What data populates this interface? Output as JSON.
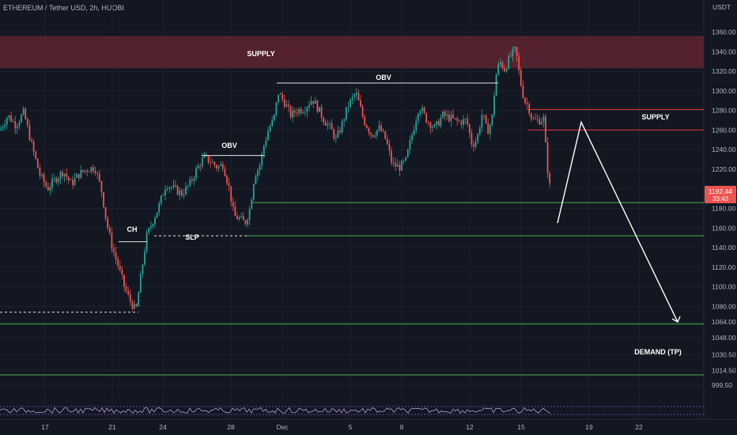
{
  "header": {
    "symbol_title": "ETHEREUM / Tether USD, 2h, HUOBI"
  },
  "colors": {
    "background": "#131722",
    "up": "#26a69a",
    "down": "#ef5350",
    "supply_zone": "#5b2330",
    "level_green": "#4caf50",
    "level_red": "#e53935",
    "projection": "#ffffff",
    "price_tag": "#ef5350"
  },
  "chart_data": {
    "type": "candlestick",
    "title": "ETHEREUM / Tether USD, 2h, HUOBI",
    "y_unit": "USDT",
    "ylim": [
      985,
      1375
    ],
    "y_ticks": [
      "1360.00",
      "1340.00",
      "1320.00",
      "1300.00",
      "1280.00",
      "1260.00",
      "1240.00",
      "1220.00",
      "1200.00",
      "1180.00",
      "1160.00",
      "1140.00",
      "1120.00",
      "1100.00",
      "1080.00",
      "1064.00",
      "1048.00",
      "1030.50",
      "1014.50",
      "999.50"
    ],
    "x_labels": [
      "17",
      "21",
      "24",
      "28",
      "Dec",
      "5",
      "8",
      "12",
      "15",
      "19",
      "22"
    ],
    "grid": true,
    "last_price": {
      "value": "1192.44",
      "countdown": "33:43"
    },
    "zones": [
      {
        "name": "SUPPLY",
        "from": 1323,
        "to": 1356
      },
      {
        "name": "SUPPLY",
        "from": 1260,
        "to": 1281
      }
    ],
    "levels": [
      {
        "label": "DEMAND (TP)",
        "value": 1062
      },
      {
        "label": "",
        "value": 1186
      },
      {
        "label": "",
        "value": 1152
      },
      {
        "label": "",
        "value": 1010
      }
    ],
    "annotations": [
      "SUPPLY",
      "OBV",
      "OBV",
      "CH",
      "SLP",
      "SUPPLY",
      "DEMAND (TP)"
    ],
    "path_points": [
      [
        0,
        1260
      ],
      [
        10,
        1275
      ],
      [
        20,
        1265
      ],
      [
        30,
        1278
      ],
      [
        40,
        1245
      ],
      [
        50,
        1215
      ],
      [
        60,
        1200
      ],
      [
        70,
        1210
      ],
      [
        80,
        1218
      ],
      [
        90,
        1205
      ],
      [
        100,
        1215
      ],
      [
        110,
        1220
      ],
      [
        120,
        1222
      ],
      [
        128,
        1200
      ],
      [
        135,
        1165
      ],
      [
        142,
        1140
      ],
      [
        150,
        1120
      ],
      [
        158,
        1098
      ],
      [
        165,
        1085
      ],
      [
        172,
        1075
      ],
      [
        178,
        1110
      ],
      [
        185,
        1150
      ],
      [
        192,
        1165
      ],
      [
        200,
        1180
      ],
      [
        210,
        1205
      ],
      [
        220,
        1200
      ],
      [
        230,
        1195
      ],
      [
        240,
        1205
      ],
      [
        250,
        1222
      ],
      [
        258,
        1232
      ],
      [
        266,
        1228
      ],
      [
        275,
        1222
      ],
      [
        282,
        1225
      ],
      [
        290,
        1200
      ],
      [
        296,
        1172
      ],
      [
        302,
        1170
      ],
      [
        310,
        1165
      ],
      [
        316,
        1180
      ],
      [
        322,
        1215
      ],
      [
        328,
        1222
      ],
      [
        334,
        1245
      ],
      [
        340,
        1262
      ],
      [
        346,
        1270
      ],
      [
        352,
        1298
      ],
      [
        360,
        1288
      ],
      [
        368,
        1275
      ],
      [
        375,
        1280
      ],
      [
        385,
        1282
      ],
      [
        395,
        1292
      ],
      [
        402,
        1282
      ],
      [
        410,
        1270
      ],
      [
        418,
        1262
      ],
      [
        425,
        1250
      ],
      [
        432,
        1265
      ],
      [
        440,
        1285
      ],
      [
        450,
        1298
      ],
      [
        460,
        1270
      ],
      [
        470,
        1255
      ],
      [
        480,
        1262
      ],
      [
        488,
        1250
      ],
      [
        496,
        1225
      ],
      [
        505,
        1222
      ],
      [
        513,
        1228
      ],
      [
        520,
        1252
      ],
      [
        530,
        1285
      ],
      [
        540,
        1270
      ],
      [
        550,
        1262
      ],
      [
        560,
        1275
      ],
      [
        570,
        1272
      ],
      [
        580,
        1268
      ],
      [
        590,
        1270
      ],
      [
        597,
        1245
      ],
      [
        603,
        1250
      ],
      [
        610,
        1278
      ],
      [
        616,
        1258
      ],
      [
        622,
        1270
      ],
      [
        627,
        1315
      ],
      [
        632,
        1330
      ],
      [
        638,
        1322
      ],
      [
        645,
        1335
      ],
      [
        652,
        1342
      ],
      [
        658,
        1310
      ],
      [
        663,
        1290
      ],
      [
        668,
        1285
      ],
      [
        673,
        1270
      ],
      [
        678,
        1270
      ],
      [
        684,
        1270
      ],
      [
        688,
        1272
      ],
      [
        691,
        1230
      ],
      [
        694,
        1210
      ],
      [
        697,
        1192
      ]
    ],
    "projection_points": [
      [
        705,
        1165
      ],
      [
        735,
        1268
      ],
      [
        857,
        1064
      ]
    ]
  }
}
